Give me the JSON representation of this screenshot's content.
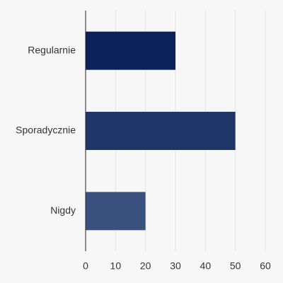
{
  "chart_data": {
    "type": "bar",
    "orientation": "horizontal",
    "categories": [
      "Regularnie",
      "Sporadycznie",
      "Nigdy"
    ],
    "values": [
      30,
      50,
      20
    ],
    "colors": [
      "#0c2158",
      "#1e3668",
      "#3a5180"
    ],
    "xlim": [
      0,
      60
    ],
    "xticks": [
      0,
      10,
      20,
      30,
      40,
      50,
      60
    ],
    "grid": true
  }
}
